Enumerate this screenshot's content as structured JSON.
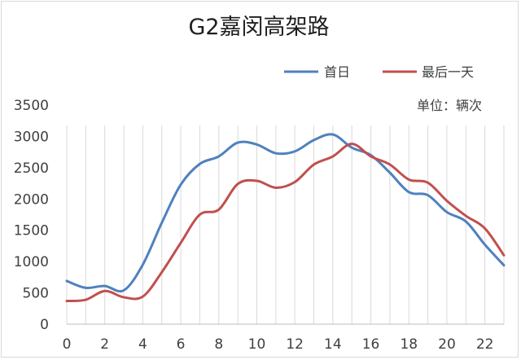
{
  "chart_data": {
    "type": "line",
    "title": "G2嘉闵高架路",
    "unit_label": "单位：辆次",
    "x": [
      0,
      1,
      2,
      3,
      4,
      5,
      6,
      7,
      8,
      9,
      10,
      11,
      12,
      13,
      14,
      15,
      16,
      17,
      18,
      19,
      20,
      21,
      22,
      23
    ],
    "x_tick_labels": [
      "0",
      "2",
      "4",
      "6",
      "8",
      "10",
      "12",
      "14",
      "16",
      "18",
      "20",
      "22"
    ],
    "y_tick_labels": [
      "0",
      "500",
      "1000",
      "1500",
      "2000",
      "2500",
      "3000",
      "3500"
    ],
    "ylim": [
      0,
      3500
    ],
    "xlim": [
      0,
      23
    ],
    "grid": "vertical",
    "legend_position": "top-right",
    "series": [
      {
        "name": "首日",
        "color": "#4f81bd",
        "values": [
          690,
          580,
          610,
          540,
          950,
          1620,
          2230,
          2560,
          2680,
          2900,
          2870,
          2730,
          2760,
          2940,
          3030,
          2820,
          2700,
          2420,
          2110,
          2060,
          1790,
          1640,
          1270,
          940
        ]
      },
      {
        "name": "最后一天",
        "color": "#c0504d",
        "values": [
          370,
          390,
          530,
          430,
          440,
          830,
          1300,
          1750,
          1830,
          2240,
          2290,
          2180,
          2270,
          2550,
          2680,
          2880,
          2680,
          2550,
          2310,
          2260,
          1970,
          1730,
          1530,
          1100
        ]
      }
    ]
  }
}
